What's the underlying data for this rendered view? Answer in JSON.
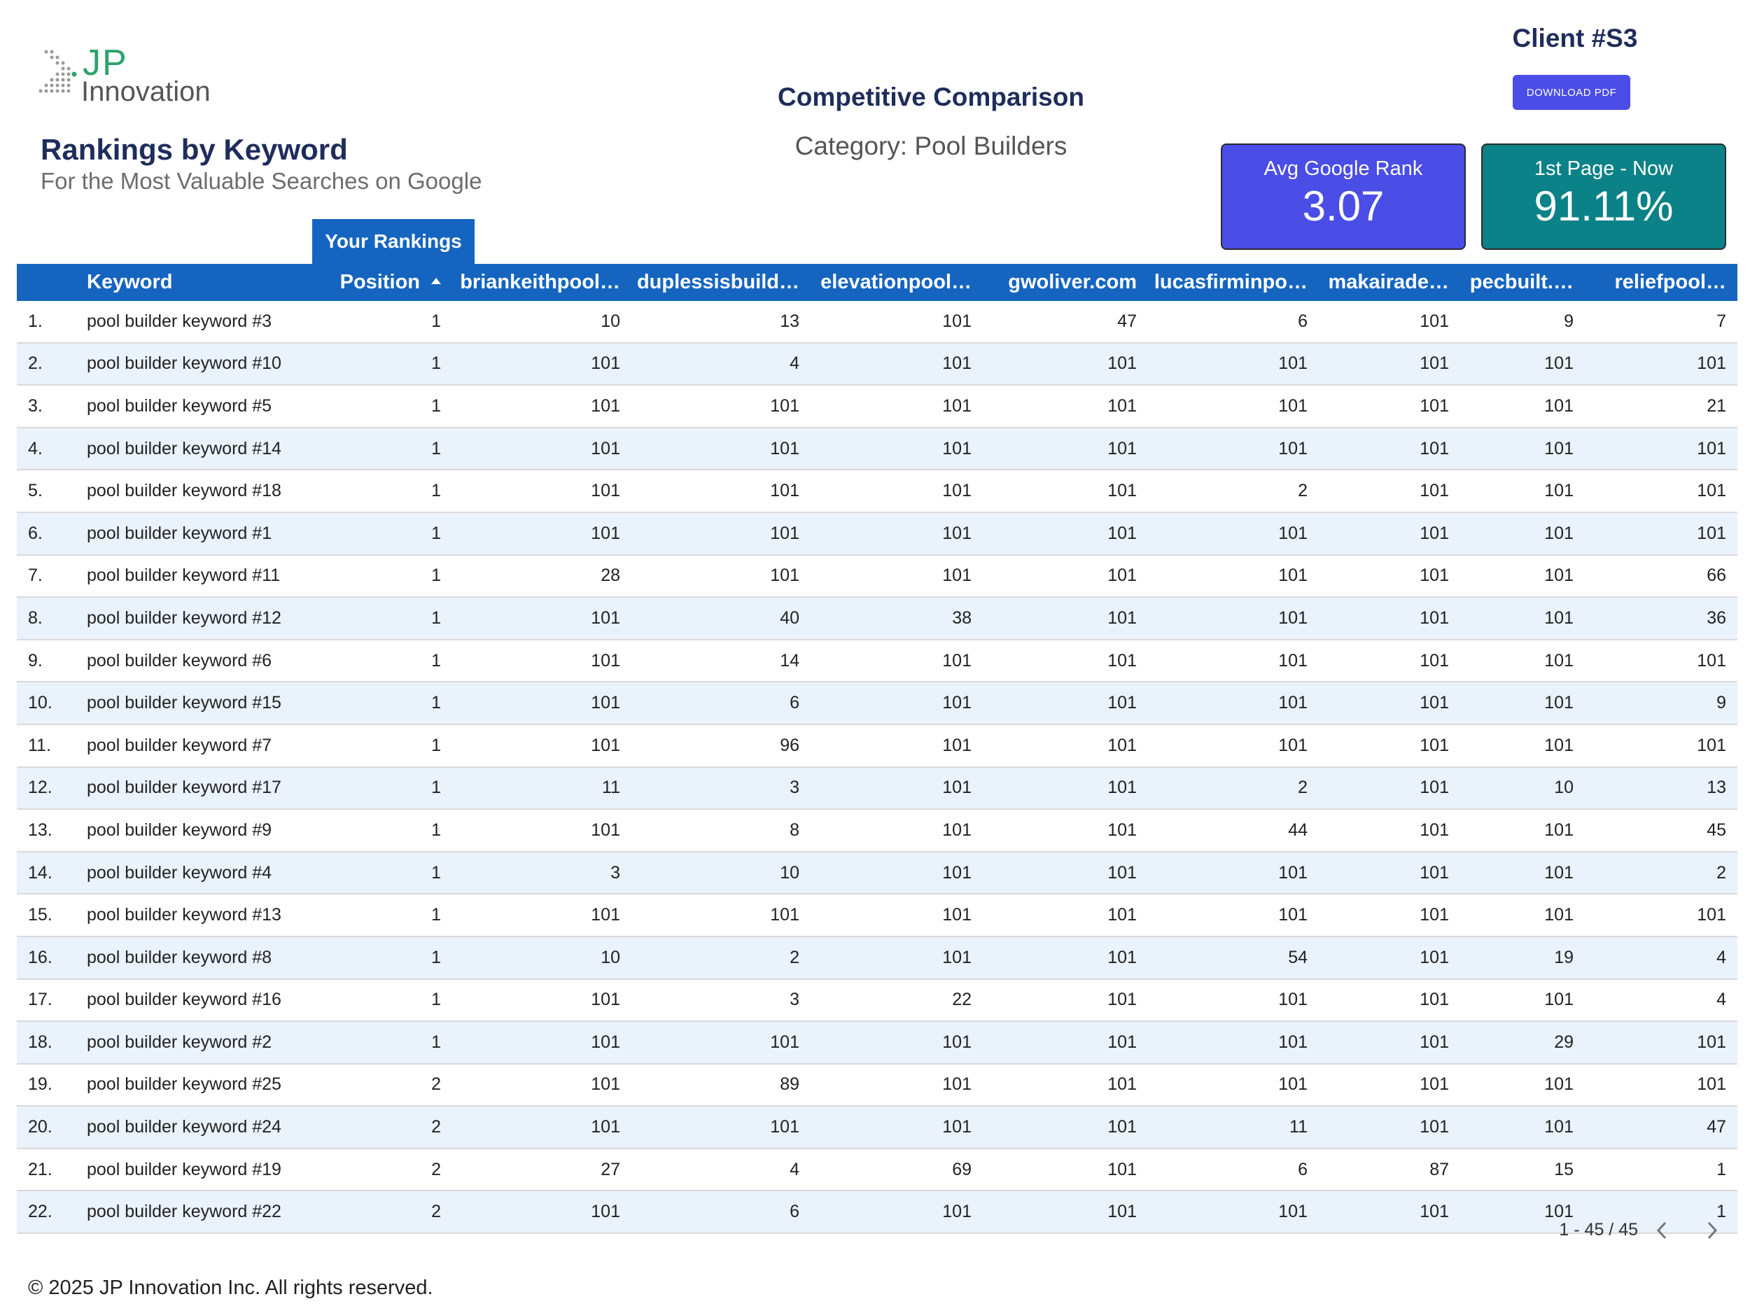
{
  "brand": {
    "logo_top": "JP",
    "logo_bottom": "Innovation"
  },
  "header": {
    "title": "Rankings by Keyword",
    "subtitle": "For the Most Valuable Searches on Google",
    "comparison_title": "Competitive Comparison",
    "category": "Category: Pool Builders",
    "client": "Client #S3",
    "download_label": "DOWNLOAD PDF"
  },
  "kpis": {
    "avg_rank": {
      "label": "Avg Google Rank",
      "value": "3.07",
      "color": "#4a4de6"
    },
    "first_page": {
      "label": "1st Page - Now",
      "value": "91.11%",
      "color": "#0b8288"
    }
  },
  "tab_label": "Your Rankings",
  "table": {
    "columns": [
      "Keyword",
      "Position",
      "briankeithpool…",
      "duplessisbuild…",
      "elevationpool…",
      "gwoliver.com",
      "lucasfirminpo…",
      "makairade…",
      "pecbuilt.…",
      "reliefpool…"
    ],
    "rows": [
      {
        "idx": "1.",
        "keyword": "pool builder keyword #3",
        "values": [
          "1",
          "10",
          "13",
          "101",
          "47",
          "6",
          "101",
          "9",
          "7"
        ]
      },
      {
        "idx": "2.",
        "keyword": "pool builder keyword #10",
        "values": [
          "1",
          "101",
          "4",
          "101",
          "101",
          "101",
          "101",
          "101",
          "101"
        ]
      },
      {
        "idx": "3.",
        "keyword": "pool builder keyword #5",
        "values": [
          "1",
          "101",
          "101",
          "101",
          "101",
          "101",
          "101",
          "101",
          "21"
        ]
      },
      {
        "idx": "4.",
        "keyword": "pool builder keyword #14",
        "values": [
          "1",
          "101",
          "101",
          "101",
          "101",
          "101",
          "101",
          "101",
          "101"
        ]
      },
      {
        "idx": "5.",
        "keyword": "pool builder keyword #18",
        "values": [
          "1",
          "101",
          "101",
          "101",
          "101",
          "2",
          "101",
          "101",
          "101"
        ]
      },
      {
        "idx": "6.",
        "keyword": "pool builder keyword #1",
        "values": [
          "1",
          "101",
          "101",
          "101",
          "101",
          "101",
          "101",
          "101",
          "101"
        ]
      },
      {
        "idx": "7.",
        "keyword": "pool builder keyword #11",
        "values": [
          "1",
          "28",
          "101",
          "101",
          "101",
          "101",
          "101",
          "101",
          "66"
        ]
      },
      {
        "idx": "8.",
        "keyword": "pool builder keyword #12",
        "values": [
          "1",
          "101",
          "40",
          "38",
          "101",
          "101",
          "101",
          "101",
          "36"
        ]
      },
      {
        "idx": "9.",
        "keyword": "pool builder keyword #6",
        "values": [
          "1",
          "101",
          "14",
          "101",
          "101",
          "101",
          "101",
          "101",
          "101"
        ]
      },
      {
        "idx": "10.",
        "keyword": "pool builder keyword #15",
        "values": [
          "1",
          "101",
          "6",
          "101",
          "101",
          "101",
          "101",
          "101",
          "9"
        ]
      },
      {
        "idx": "11.",
        "keyword": "pool builder keyword #7",
        "values": [
          "1",
          "101",
          "96",
          "101",
          "101",
          "101",
          "101",
          "101",
          "101"
        ]
      },
      {
        "idx": "12.",
        "keyword": "pool builder keyword #17",
        "values": [
          "1",
          "11",
          "3",
          "101",
          "101",
          "2",
          "101",
          "10",
          "13"
        ]
      },
      {
        "idx": "13.",
        "keyword": "pool builder keyword #9",
        "values": [
          "1",
          "101",
          "8",
          "101",
          "101",
          "44",
          "101",
          "101",
          "45"
        ]
      },
      {
        "idx": "14.",
        "keyword": "pool builder keyword #4",
        "values": [
          "1",
          "3",
          "10",
          "101",
          "101",
          "101",
          "101",
          "101",
          "2"
        ]
      },
      {
        "idx": "15.",
        "keyword": "pool builder keyword #13",
        "values": [
          "1",
          "101",
          "101",
          "101",
          "101",
          "101",
          "101",
          "101",
          "101"
        ]
      },
      {
        "idx": "16.",
        "keyword": "pool builder keyword #8",
        "values": [
          "1",
          "10",
          "2",
          "101",
          "101",
          "54",
          "101",
          "19",
          "4"
        ]
      },
      {
        "idx": "17.",
        "keyword": "pool builder keyword #16",
        "values": [
          "1",
          "101",
          "3",
          "22",
          "101",
          "101",
          "101",
          "101",
          "4"
        ]
      },
      {
        "idx": "18.",
        "keyword": "pool builder keyword #2",
        "values": [
          "1",
          "101",
          "101",
          "101",
          "101",
          "101",
          "101",
          "29",
          "101"
        ]
      },
      {
        "idx": "19.",
        "keyword": "pool builder keyword #25",
        "values": [
          "2",
          "101",
          "89",
          "101",
          "101",
          "101",
          "101",
          "101",
          "101"
        ]
      },
      {
        "idx": "20.",
        "keyword": "pool builder keyword #24",
        "values": [
          "2",
          "101",
          "101",
          "101",
          "101",
          "11",
          "101",
          "101",
          "47"
        ]
      },
      {
        "idx": "21.",
        "keyword": "pool builder keyword #19",
        "values": [
          "2",
          "27",
          "4",
          "69",
          "101",
          "6",
          "87",
          "15",
          "1"
        ]
      },
      {
        "idx": "22.",
        "keyword": "pool builder keyword #22",
        "values": [
          "2",
          "101",
          "6",
          "101",
          "101",
          "101",
          "101",
          "101",
          "1"
        ]
      }
    ]
  },
  "pagination": {
    "text": "1 - 45 / 45"
  },
  "footer": "© 2025 JP Innovation Inc.  All rights reserved."
}
